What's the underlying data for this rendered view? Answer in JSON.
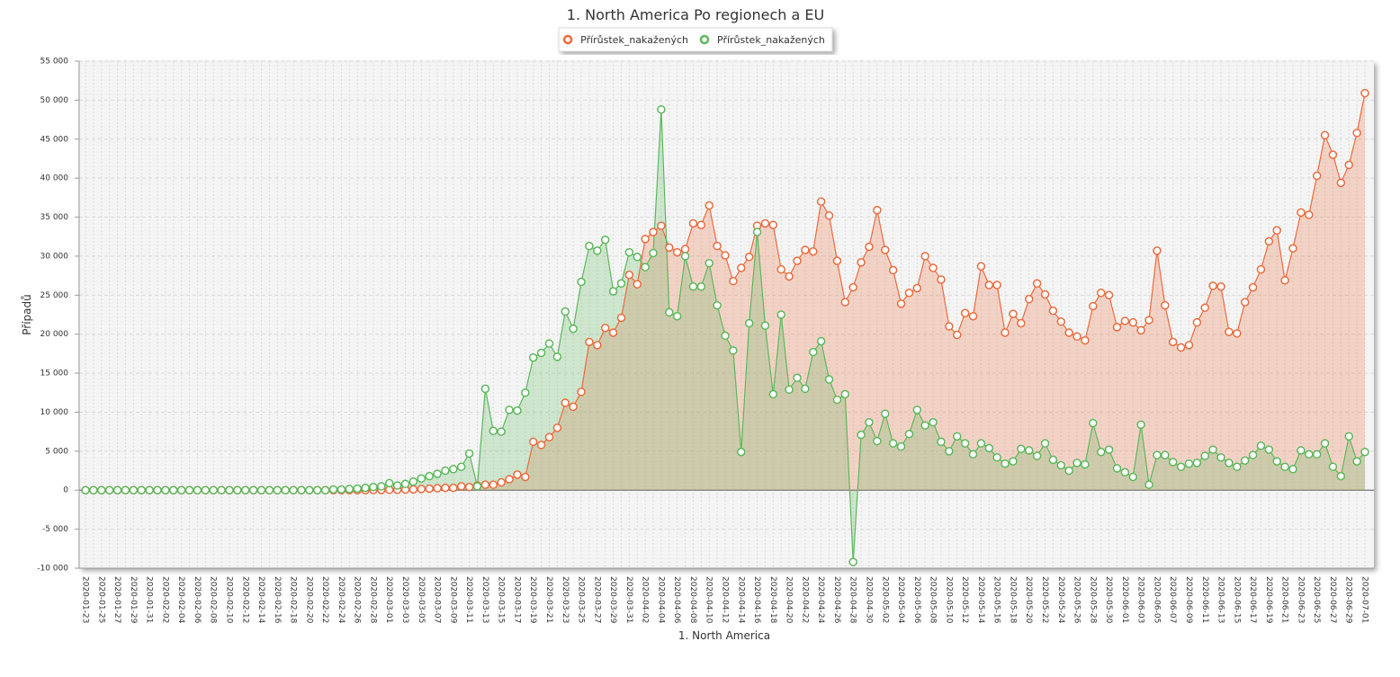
{
  "chart_data": {
    "type": "line",
    "title": "1. North America Po regionech a EU",
    "x_label": "1. North America",
    "y_label": "Případů",
    "categories": [
      "2020-01-23",
      null,
      "2020-01-25",
      null,
      "2020-01-27",
      null,
      "2020-01-29",
      null,
      "2020-01-31",
      null,
      "2020-02-02",
      null,
      "2020-02-04",
      null,
      "2020-02-06",
      null,
      "2020-02-08",
      null,
      "2020-02-10",
      null,
      "2020-02-12",
      null,
      "2020-02-14",
      null,
      "2020-02-16",
      null,
      "2020-02-18",
      null,
      "2020-02-20",
      null,
      "2020-02-22",
      null,
      "2020-02-24",
      null,
      "2020-02-26",
      null,
      "2020-02-28",
      null,
      "2020-03-01",
      null,
      "2020-03-03",
      null,
      "2020-03-05",
      null,
      "2020-03-07",
      null,
      "2020-03-09",
      null,
      "2020-03-11",
      null,
      "2020-03-13",
      null,
      "2020-03-15",
      null,
      "2020-03-17",
      null,
      "2020-03-19",
      null,
      "2020-03-21",
      null,
      "2020-03-23",
      null,
      "2020-03-25",
      null,
      "2020-03-27",
      null,
      "2020-03-29",
      null,
      "2020-03-31",
      null,
      "2020-04-02",
      null,
      "2020-04-04",
      null,
      "2020-04-06",
      null,
      "2020-04-08",
      null,
      "2020-04-10",
      null,
      "2020-04-12",
      null,
      "2020-04-14",
      null,
      "2020-04-16",
      null,
      "2020-04-18",
      null,
      "2020-04-20",
      null,
      "2020-04-22",
      null,
      "2020-04-24",
      null,
      "2020-04-26",
      null,
      "2020-04-28",
      null,
      "2020-04-30",
      null,
      "2020-05-02",
      null,
      "2020-05-04",
      null,
      "2020-05-06",
      null,
      "2020-05-08",
      null,
      "2020-05-10",
      null,
      "2020-05-12",
      null,
      "2020-05-14",
      null,
      "2020-05-16",
      null,
      "2020-05-18",
      null,
      "2020-05-20",
      null,
      "2020-05-22",
      null,
      "2020-05-24",
      null,
      "2020-05-26",
      null,
      "2020-05-28",
      null,
      "2020-05-30",
      null,
      "2020-06-01",
      null,
      "2020-06-03",
      null,
      "2020-06-05",
      null,
      "2020-06-07",
      null,
      "2020-06-09",
      null,
      "2020-06-11",
      null,
      "2020-06-13",
      null,
      "2020-06-15",
      null,
      "2020-06-17",
      null,
      "2020-06-19",
      null,
      "2020-06-21",
      null,
      "2020-06-23",
      null,
      "2020-06-25",
      null,
      "2020-06-27",
      null,
      "2020-06-29",
      null,
      "2020-07-01"
    ],
    "series": [
      {
        "name": "Přírůstek_nakažených",
        "color": "#ee6a3c",
        "values": [
          0,
          0,
          0,
          0,
          0,
          0,
          0,
          0,
          0,
          0,
          0,
          0,
          0,
          0,
          0,
          0,
          0,
          0,
          0,
          0,
          0,
          0,
          0,
          0,
          0,
          0,
          0,
          0,
          0,
          0,
          0,
          0,
          0,
          0,
          0,
          0,
          20,
          30,
          50,
          60,
          80,
          100,
          150,
          200,
          250,
          300,
          300,
          500,
          400,
          600,
          700,
          700,
          1000,
          1400,
          2000,
          1700,
          6200,
          5800,
          6800,
          8000,
          11200,
          10700,
          12600,
          19000,
          18600,
          20800,
          20200,
          22100,
          27600,
          26400,
          32200,
          33100,
          33900,
          31100,
          30500,
          30900,
          34200,
          34000,
          36500,
          31300,
          30100,
          26800,
          28500,
          29900,
          33900,
          34200,
          34000,
          28300,
          27400,
          29400,
          30800,
          30600,
          37000,
          35200,
          29400,
          24100,
          26000,
          29200,
          31200,
          35900,
          30800,
          28200,
          23900,
          25300,
          25900,
          30000,
          28500,
          27000,
          21000,
          19900,
          22700,
          22300,
          28700,
          26300,
          26300,
          20200,
          22600,
          21400,
          24500,
          26500,
          25100,
          23000,
          21600,
          20200,
          19700,
          19200,
          23600,
          25300,
          25000,
          20900,
          21700,
          21500,
          20500,
          21800,
          30700,
          23700,
          19000,
          18300,
          18600,
          21500,
          23400,
          26200,
          26100,
          20300,
          20100,
          24100,
          26000,
          28300,
          31900,
          33300,
          26900,
          31000,
          35600,
          35300,
          40300,
          45500,
          43000,
          39400,
          41700,
          45800,
          50900
        ]
      },
      {
        "name": "Přírůstek_nakažených",
        "color": "#5cb85c",
        "values": [
          0,
          0,
          0,
          0,
          0,
          0,
          0,
          0,
          0,
          0,
          0,
          0,
          0,
          0,
          0,
          0,
          0,
          0,
          0,
          0,
          0,
          0,
          0,
          0,
          0,
          0,
          0,
          0,
          0,
          0,
          0,
          100,
          100,
          150,
          200,
          300,
          400,
          500,
          900,
          600,
          800,
          1100,
          1500,
          1800,
          2100,
          2500,
          2700,
          3000,
          4700,
          500,
          13000,
          7600,
          7500,
          10300,
          10200,
          12500,
          17000,
          17600,
          18800,
          17100,
          22900,
          20700,
          26700,
          31300,
          30700,
          32100,
          25500,
          26500,
          30500,
          29900,
          28600,
          30400,
          48800,
          22800,
          22300,
          30000,
          26100,
          26100,
          29100,
          23700,
          19800,
          17900,
          4900,
          21400,
          33100,
          21100,
          12300,
          22500,
          12900,
          14400,
          13000,
          17700,
          19100,
          14200,
          11600,
          12300,
          -9200,
          7100,
          8700,
          6300,
          9800,
          6000,
          5600,
          7200,
          10300,
          8300,
          8700,
          6200,
          5000,
          6900,
          6000,
          4600,
          6000,
          5400,
          4200,
          3400,
          3700,
          5300,
          5100,
          4400,
          6000,
          3900,
          3200,
          2500,
          3500,
          3300,
          8600,
          4900,
          5200,
          2800,
          2300,
          1700,
          8400,
          700,
          4500,
          4500,
          3600,
          3000,
          3400,
          3500,
          4400,
          5200,
          4200,
          3500,
          3000,
          3800,
          4500,
          5700,
          5200,
          3700,
          3000,
          2700,
          5100,
          4600,
          4600,
          6000,
          3000,
          1800,
          6900,
          3700,
          4900
        ]
      }
    ],
    "ylim": [
      -10000,
      55000
    ],
    "yticks": [
      {
        "value": -10000,
        "label": "-10 000"
      },
      {
        "value": -5000,
        "label": "-5 000"
      },
      0,
      {
        "value": 5000,
        "label": "5 000"
      },
      {
        "value": 10000,
        "label": "10 000"
      },
      {
        "value": 15000,
        "label": "15 000"
      },
      {
        "value": 20000,
        "label": "20 000"
      },
      {
        "value": 25000,
        "label": "25 000"
      },
      {
        "value": 30000,
        "label": "30 000"
      },
      {
        "value": 35000,
        "label": "35 000"
      },
      {
        "value": 40000,
        "label": "40 000"
      },
      {
        "value": 45000,
        "label": "45 000"
      },
      {
        "value": 50000,
        "label": "50 000"
      },
      {
        "value": 55000,
        "label": "55 000"
      }
    ],
    "grid": true
  }
}
